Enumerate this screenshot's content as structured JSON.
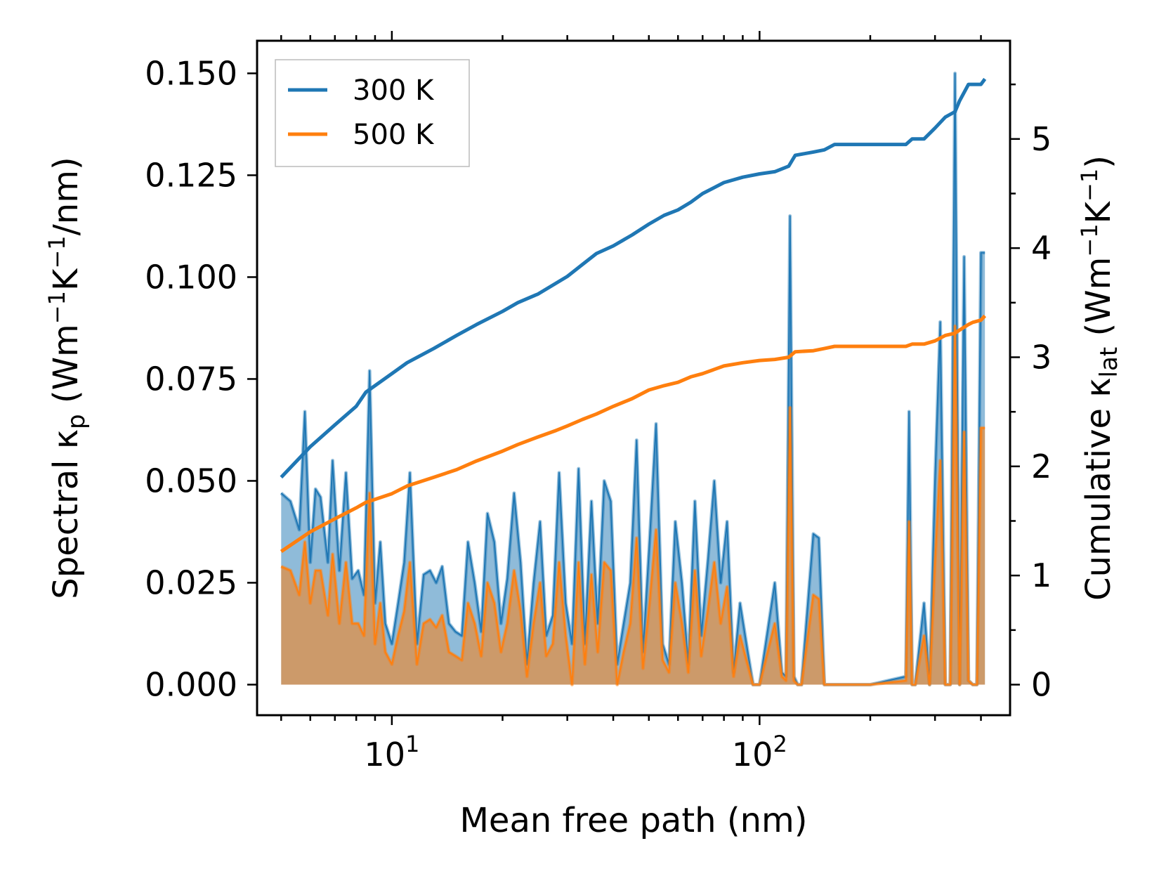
{
  "chart_data": {
    "type": "line",
    "x_scale": "log",
    "xlabel": "Mean free path (nm)",
    "xlim": [
      4.3,
      480
    ],
    "x_ticks": [
      {
        "value": 10,
        "base": "10",
        "exp": "1"
      },
      {
        "value": 100,
        "base": "10",
        "exp": "2"
      }
    ],
    "ylabel_left": {
      "main": "Spectral κ",
      "sub": "p",
      "unit_pre": " (Wm",
      "exp1": "−1",
      "unit_mid": "K",
      "exp2": "−1",
      "unit_post": "/nm)"
    },
    "ylim_left": [
      -0.0075,
      0.158
    ],
    "y_ticks_left": [
      "0.000",
      "0.025",
      "0.050",
      "0.075",
      "0.100",
      "0.125",
      "0.150"
    ],
    "ylabel_right": {
      "main": "Cumulative κ",
      "sub": "lat",
      "unit_pre": " (Wm",
      "exp1": "−1",
      "unit_mid": "K",
      "exp2": "−1",
      "unit_post": ")"
    },
    "ylim_right": [
      -0.28,
      5.9
    ],
    "y_ticks_right": [
      "0",
      "1",
      "2",
      "3",
      "4",
      "5"
    ],
    "legend": {
      "position": "top-left",
      "entries": [
        "300 K",
        "500 K"
      ]
    },
    "colors": {
      "300 K": "#1f77b4",
      "500 K": "#ff7f0e"
    },
    "series": [
      {
        "name": "300 K",
        "axis": "right",
        "kind": "cumulative",
        "x": [
          5,
          6,
          7,
          8,
          8.5,
          10,
          11,
          13,
          15,
          17,
          20,
          22,
          25,
          28,
          30,
          33,
          36,
          40,
          45,
          50,
          55,
          60,
          65,
          70,
          80,
          90,
          100,
          110,
          120,
          125,
          140,
          150,
          160,
          200,
          250,
          260,
          280,
          300,
          320,
          340,
          350,
          370,
          380,
          400,
          410
        ],
        "values": [
          1.9,
          2.18,
          2.38,
          2.55,
          2.68,
          2.85,
          2.95,
          3.08,
          3.2,
          3.3,
          3.42,
          3.5,
          3.58,
          3.68,
          3.74,
          3.85,
          3.95,
          4.02,
          4.12,
          4.22,
          4.3,
          4.35,
          4.42,
          4.5,
          4.6,
          4.65,
          4.68,
          4.7,
          4.75,
          4.85,
          4.88,
          4.9,
          4.95,
          4.95,
          4.95,
          5.0,
          5.0,
          5.1,
          5.2,
          5.25,
          5.35,
          5.5,
          5.5,
          5.5,
          5.55
        ]
      },
      {
        "name": "500 K",
        "axis": "right",
        "kind": "cumulative",
        "x": [
          5,
          6,
          7,
          8,
          8.5,
          10,
          11,
          13,
          15,
          17,
          20,
          22,
          25,
          28,
          30,
          33,
          36,
          40,
          45,
          50,
          55,
          60,
          65,
          70,
          80,
          90,
          100,
          110,
          120,
          125,
          140,
          150,
          160,
          200,
          250,
          260,
          280,
          300,
          320,
          340,
          350,
          370,
          380,
          400,
          410
        ],
        "values": [
          1.22,
          1.4,
          1.52,
          1.62,
          1.67,
          1.75,
          1.82,
          1.9,
          1.97,
          2.05,
          2.14,
          2.2,
          2.27,
          2.33,
          2.37,
          2.43,
          2.48,
          2.55,
          2.62,
          2.7,
          2.74,
          2.77,
          2.82,
          2.85,
          2.92,
          2.95,
          2.97,
          2.98,
          3.0,
          3.05,
          3.06,
          3.08,
          3.1,
          3.1,
          3.1,
          3.12,
          3.12,
          3.15,
          3.2,
          3.22,
          3.25,
          3.3,
          3.32,
          3.34,
          3.38
        ]
      },
      {
        "name": "300 K spectral",
        "axis": "left",
        "kind": "spectral",
        "x": [
          5,
          5.3,
          5.6,
          5.8,
          6.0,
          6.2,
          6.4,
          6.7,
          6.9,
          7.2,
          7.5,
          7.8,
          8.1,
          8.4,
          8.7,
          9.0,
          9.3,
          9.6,
          10.0,
          10.4,
          10.8,
          11.2,
          11.7,
          12.2,
          12.7,
          13.2,
          13.7,
          14.3,
          14.9,
          15.5,
          16.1,
          16.8,
          17.5,
          18.2,
          19.0,
          19.8,
          20.6,
          21.5,
          22.4,
          23.3,
          24.3,
          25.3,
          26.3,
          27.4,
          28.5,
          29.7,
          30.9,
          32.2,
          33.5,
          34.9,
          36.3,
          37.8,
          39.4,
          41.0,
          42.7,
          44.5,
          46.3,
          48.2,
          50.2,
          52.3,
          54.5,
          56.7,
          59.0,
          61.5,
          64.0,
          66.7,
          69.4,
          72.3,
          75.3,
          78.4,
          81.6,
          85.0,
          88.5,
          92.1,
          96.0,
          100,
          110,
          115,
          118,
          121,
          124,
          127,
          130,
          140,
          145,
          150,
          155,
          160,
          200,
          250,
          255,
          260,
          265,
          280,
          290,
          300,
          310,
          320,
          330,
          340,
          350,
          360,
          370,
          380,
          390,
          400,
          410
        ],
        "values": [
          0.047,
          0.045,
          0.038,
          0.067,
          0.03,
          0.048,
          0.046,
          0.03,
          0.055,
          0.028,
          0.052,
          0.026,
          0.028,
          0.022,
          0.077,
          0.02,
          0.035,
          0.015,
          0.01,
          0.02,
          0.03,
          0.052,
          0.01,
          0.027,
          0.028,
          0.025,
          0.029,
          0.015,
          0.013,
          0.012,
          0.035,
          0.025,
          0.013,
          0.042,
          0.035,
          0.015,
          0.026,
          0.047,
          0.03,
          0.005,
          0.025,
          0.04,
          0.012,
          0.017,
          0.052,
          0.02,
          0.01,
          0.053,
          0.01,
          0.045,
          0.015,
          0.05,
          0.045,
          0.005,
          0.015,
          0.025,
          0.06,
          0.008,
          0.035,
          0.064,
          0.01,
          0.005,
          0.04,
          0.025,
          0.005,
          0.045,
          0.012,
          0.03,
          0.05,
          0.025,
          0.04,
          0.003,
          0.02,
          0.01,
          0.0,
          0.0,
          0.025,
          0.003,
          0.002,
          0.115,
          0.002,
          0.0,
          0.0,
          0.037,
          0.036,
          0.0,
          0.0,
          0.0,
          0.0,
          0.002,
          0.067,
          0.0,
          0.0,
          0.02,
          0.0,
          0.05,
          0.089,
          0.0,
          0.0,
          0.15,
          0.0,
          0.105,
          0.001,
          0.0,
          0.0,
          0.106,
          0.106
        ]
      },
      {
        "name": "500 K spectral",
        "axis": "left",
        "kind": "spectral",
        "x": [
          5,
          5.3,
          5.6,
          5.8,
          6.0,
          6.2,
          6.4,
          6.7,
          6.9,
          7.2,
          7.5,
          7.8,
          8.1,
          8.4,
          8.7,
          9.0,
          9.3,
          9.6,
          10.0,
          10.4,
          10.8,
          11.2,
          11.7,
          12.2,
          12.7,
          13.2,
          13.7,
          14.3,
          14.9,
          15.5,
          16.1,
          16.8,
          17.5,
          18.2,
          19.0,
          19.8,
          20.6,
          21.5,
          22.4,
          23.3,
          24.3,
          25.3,
          26.3,
          27.4,
          28.5,
          29.7,
          30.9,
          32.2,
          33.5,
          34.9,
          36.3,
          37.8,
          39.4,
          41.0,
          42.7,
          44.5,
          46.3,
          48.2,
          50.2,
          52.3,
          54.5,
          56.7,
          59.0,
          61.5,
          64.0,
          66.7,
          69.4,
          72.3,
          75.3,
          78.4,
          81.6,
          85.0,
          88.5,
          92.1,
          96.0,
          100,
          110,
          115,
          118,
          121,
          124,
          127,
          130,
          140,
          145,
          150,
          155,
          160,
          200,
          250,
          255,
          260,
          265,
          280,
          290,
          300,
          310,
          320,
          330,
          340,
          350,
          360,
          370,
          380,
          390,
          400,
          410
        ],
        "values": [
          0.029,
          0.028,
          0.022,
          0.035,
          0.02,
          0.028,
          0.028,
          0.017,
          0.032,
          0.015,
          0.03,
          0.015,
          0.015,
          0.012,
          0.047,
          0.01,
          0.02,
          0.008,
          0.005,
          0.012,
          0.018,
          0.03,
          0.005,
          0.015,
          0.016,
          0.014,
          0.017,
          0.008,
          0.007,
          0.006,
          0.02,
          0.015,
          0.007,
          0.025,
          0.02,
          0.008,
          0.015,
          0.028,
          0.018,
          0.002,
          0.015,
          0.025,
          0.007,
          0.01,
          0.03,
          0.012,
          0.0,
          0.03,
          0.005,
          0.027,
          0.008,
          0.03,
          0.028,
          0.0,
          0.008,
          0.015,
          0.036,
          0.004,
          0.02,
          0.038,
          0.006,
          0.003,
          0.025,
          0.015,
          0.003,
          0.028,
          0.007,
          0.018,
          0.03,
          0.015,
          0.024,
          0.002,
          0.012,
          0.006,
          0.0,
          0.0,
          0.015,
          0.002,
          0.001,
          0.068,
          0.001,
          0.0,
          0.0,
          0.022,
          0.021,
          0.0,
          0.0,
          0.0,
          0.0,
          0.001,
          0.04,
          0.0,
          0.0,
          0.012,
          0.0,
          0.03,
          0.055,
          0.0,
          0.0,
          0.088,
          0.0,
          0.062,
          0.001,
          0.0,
          0.0,
          0.063,
          0.063
        ]
      }
    ]
  }
}
